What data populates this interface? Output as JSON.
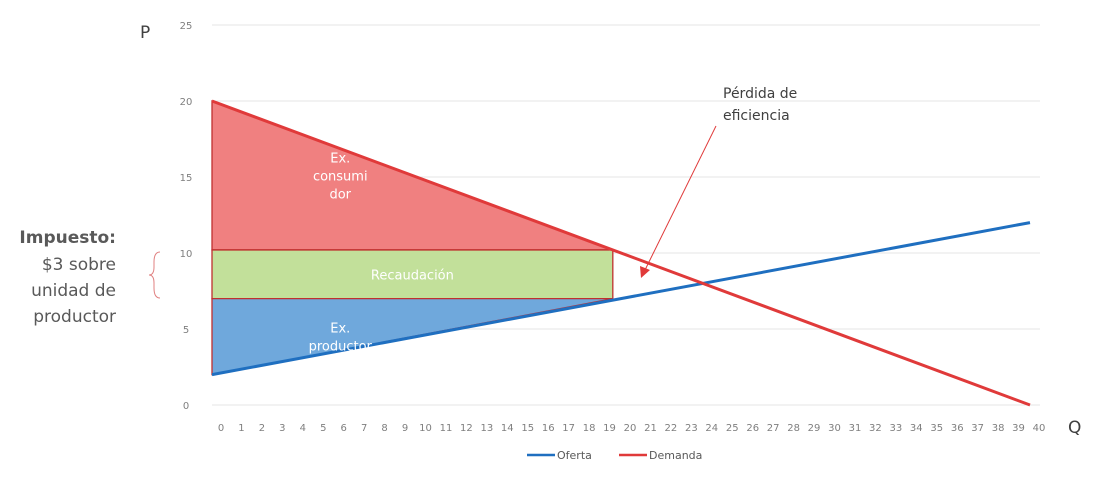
{
  "chart_data": {
    "type": "line",
    "xlabel": "Q",
    "ylabel": "P",
    "xlim": [
      0,
      40
    ],
    "ylim": [
      0,
      25
    ],
    "x_ticks": [
      "0",
      "1",
      "2",
      "3",
      "4",
      "5",
      "6",
      "7",
      "8",
      "9",
      "10",
      "11",
      "12",
      "13",
      "14",
      "15",
      "16",
      "17",
      "18",
      "19",
      "20",
      "21",
      "22",
      "23",
      "24",
      "25",
      "26",
      "27",
      "28",
      "29",
      "30",
      "31",
      "32",
      "33",
      "34",
      "35",
      "36",
      "37",
      "38",
      "39",
      "40"
    ],
    "y_ticks": [
      "0",
      "5",
      "10",
      "15",
      "20",
      "25"
    ],
    "grid": "horizontal",
    "legend_position": "bottom",
    "series": [
      {
        "name": "Oferta",
        "color": "#1f6fc0",
        "x": [
          0,
          40
        ],
        "y": [
          2,
          12
        ]
      },
      {
        "name": "Demanda",
        "color": "#e03a3a",
        "x": [
          0,
          40
        ],
        "y": [
          20,
          0
        ]
      }
    ],
    "regions": [
      {
        "label_lines": [
          "Ex.",
          "consumi",
          "dor"
        ],
        "color": "#f08080",
        "points": [
          [
            0,
            20
          ],
          [
            19.6,
            10.2
          ],
          [
            0,
            10.2
          ]
        ]
      },
      {
        "label_lines": [
          "Recaudación"
        ],
        "color": "#c2e09a",
        "points": [
          [
            0,
            10.2
          ],
          [
            19.6,
            10.2
          ],
          [
            19.6,
            7.0
          ],
          [
            0,
            7.0
          ]
        ]
      },
      {
        "label_lines": [
          "Ex.",
          "productor"
        ],
        "color": "#6fa8dc",
        "points": [
          [
            0,
            7.0
          ],
          [
            19.6,
            7.0
          ],
          [
            0,
            2
          ]
        ]
      }
    ],
    "annotation": {
      "lines": [
        "Pérdida de",
        "eficiencia"
      ]
    },
    "side_text": {
      "title": "Impuesto:",
      "lines": [
        "$3 sobre",
        "unidad de",
        "productor"
      ]
    }
  }
}
